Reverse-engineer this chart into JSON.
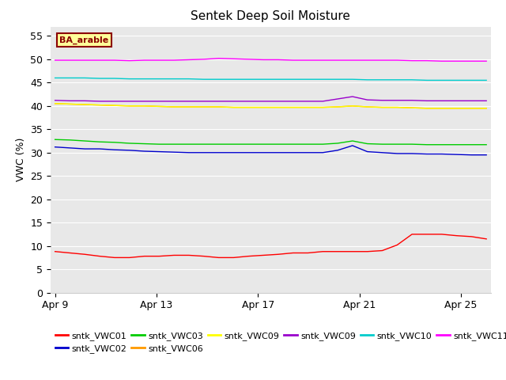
{
  "title": "Sentek Deep Soil Moisture",
  "ylabel": "VWC (%)",
  "annotation": "BA_arable",
  "ylim": [
    0,
    57
  ],
  "yticks": [
    0,
    5,
    10,
    15,
    20,
    25,
    30,
    35,
    40,
    45,
    50,
    55
  ],
  "xtick_labels": [
    "Apr 9",
    "Apr 13",
    "Apr 17",
    "Apr 21",
    "Apr 25"
  ],
  "bg_color": "#e8e8e8",
  "series": [
    {
      "label": "sntk_VWC01",
      "color": "#ff0000",
      "profile": [
        8.8,
        8.5,
        8.2,
        7.8,
        7.5,
        7.5,
        7.8,
        7.8,
        8.0,
        8.0,
        7.8,
        7.5,
        7.5,
        7.8,
        8.0,
        8.2,
        8.5,
        8.5,
        8.8,
        8.8,
        8.8,
        8.8,
        9.0,
        10.2,
        12.5,
        12.5,
        12.5,
        12.2,
        12.0,
        11.5
      ]
    },
    {
      "label": "sntk_VWC02",
      "color": "#0000cc",
      "profile": [
        31.2,
        31.0,
        30.8,
        30.8,
        30.6,
        30.5,
        30.3,
        30.2,
        30.1,
        30.0,
        30.0,
        30.0,
        30.0,
        30.0,
        30.0,
        30.0,
        30.0,
        30.0,
        30.0,
        30.5,
        31.5,
        30.2,
        30.0,
        29.8,
        29.8,
        29.7,
        29.7,
        29.6,
        29.5,
        29.5
      ]
    },
    {
      "label": "sntk_VWC03",
      "color": "#00cc00",
      "profile": [
        32.8,
        32.7,
        32.5,
        32.3,
        32.2,
        32.0,
        31.9,
        31.8,
        31.8,
        31.8,
        31.8,
        31.8,
        31.8,
        31.8,
        31.8,
        31.8,
        31.8,
        31.8,
        31.8,
        32.0,
        32.5,
        31.9,
        31.8,
        31.8,
        31.8,
        31.7,
        31.7,
        31.7,
        31.7,
        31.7
      ]
    },
    {
      "label": "sntk_VWC06",
      "color": "#ff9900",
      "profile": [
        40.5,
        40.4,
        40.3,
        40.2,
        40.1,
        40.0,
        40.0,
        39.9,
        39.8,
        39.8,
        39.8,
        39.8,
        39.7,
        39.7,
        39.7,
        39.7,
        39.7,
        39.7,
        39.7,
        39.8,
        40.0,
        39.8,
        39.7,
        39.7,
        39.6,
        39.5,
        39.5,
        39.5,
        39.5,
        39.5
      ]
    },
    {
      "label": "sntk_VWC09",
      "color": "#ffff00",
      "profile": [
        40.5,
        40.4,
        40.3,
        40.2,
        40.1,
        40.0,
        40.0,
        39.9,
        39.8,
        39.8,
        39.8,
        39.8,
        39.7,
        39.7,
        39.7,
        39.7,
        39.7,
        39.7,
        39.7,
        39.8,
        40.0,
        39.8,
        39.7,
        39.7,
        39.6,
        39.5,
        39.5,
        39.5,
        39.5,
        39.5
      ]
    },
    {
      "label": "sntk_VWC09",
      "color": "#9900cc",
      "profile": [
        41.2,
        41.1,
        41.1,
        41.0,
        41.0,
        41.0,
        41.0,
        41.0,
        41.0,
        41.0,
        41.0,
        41.0,
        41.0,
        41.0,
        41.0,
        41.0,
        41.0,
        41.0,
        41.0,
        41.5,
        42.0,
        41.3,
        41.2,
        41.2,
        41.2,
        41.1,
        41.1,
        41.1,
        41.1,
        41.1
      ]
    },
    {
      "label": "sntk_VWC10",
      "color": "#00cccc",
      "profile": [
        46.0,
        46.0,
        46.0,
        45.9,
        45.9,
        45.8,
        45.8,
        45.8,
        45.8,
        45.8,
        45.7,
        45.7,
        45.7,
        45.7,
        45.7,
        45.7,
        45.7,
        45.7,
        45.7,
        45.7,
        45.7,
        45.6,
        45.6,
        45.6,
        45.6,
        45.5,
        45.5,
        45.5,
        45.5,
        45.5
      ]
    },
    {
      "label": "sntk_VWC11",
      "color": "#ff00ff",
      "profile": [
        49.8,
        49.8,
        49.8,
        49.8,
        49.8,
        49.7,
        49.8,
        49.8,
        49.8,
        49.9,
        50.0,
        50.2,
        50.1,
        50.0,
        49.9,
        49.9,
        49.8,
        49.8,
        49.8,
        49.8,
        49.8,
        49.8,
        49.8,
        49.8,
        49.7,
        49.7,
        49.6,
        49.6,
        49.6,
        49.6
      ]
    }
  ],
  "legend_row1": [
    {
      "color": "#ff0000",
      "label": "sntk_VWC01"
    },
    {
      "color": "#0000cc",
      "label": "sntk_VWC02"
    },
    {
      "color": "#00cc00",
      "label": "sntk_VWC03"
    },
    {
      "color": "#ff9900",
      "label": "sntk_VWC06"
    },
    {
      "color": "#ffff00",
      "label": "sntk_VWC09"
    },
    {
      "color": "#9900cc",
      "label": "sntk_VWC09"
    }
  ],
  "legend_row2": [
    {
      "color": "#00cccc",
      "label": "sntk_VWC10"
    },
    {
      "color": "#ff00ff",
      "label": "sntk_VWC11"
    }
  ]
}
